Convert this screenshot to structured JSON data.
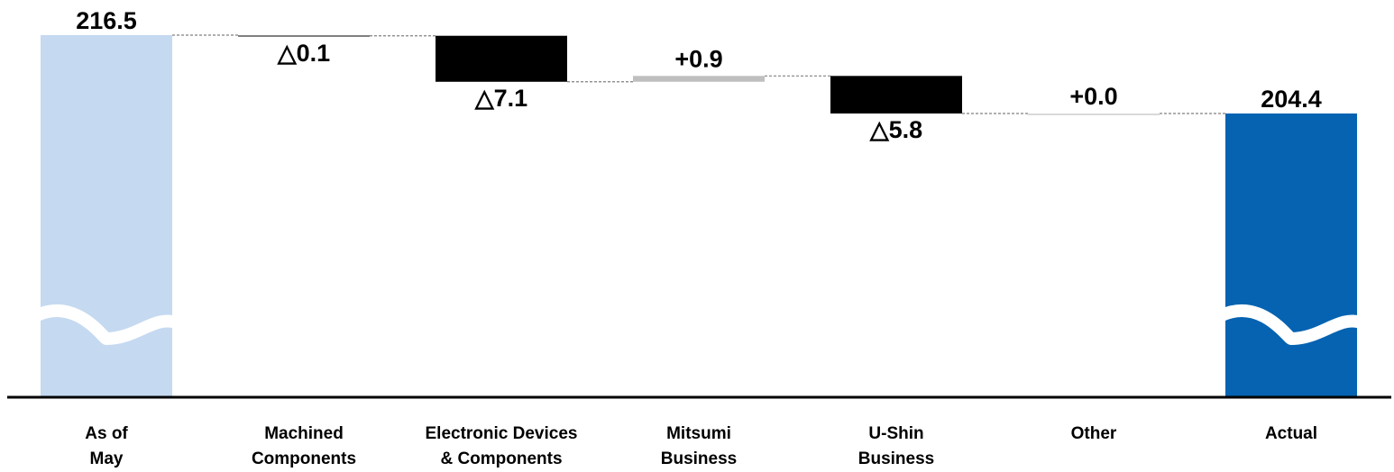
{
  "chart_data": {
    "type": "waterfall",
    "title": "",
    "xlabel": "",
    "ylabel": "",
    "axis_break": true,
    "grid": false,
    "ylim": [
      193.0,
      218.0
    ],
    "categories": [
      [
        "As of",
        "May"
      ],
      [
        "Machined",
        "Components"
      ],
      [
        "Electronic Devices",
        "& Components"
      ],
      [
        "Mitsumi",
        "Business"
      ],
      [
        "U-Shin",
        "Business"
      ],
      [
        "Other"
      ],
      [
        "Actual"
      ]
    ],
    "steps": [
      {
        "kind": "total",
        "value": 216.5,
        "label": "216.5",
        "color": "#c5d9f1"
      },
      {
        "kind": "delta",
        "value": -0.1,
        "label": "△0.1",
        "color": "#808080"
      },
      {
        "kind": "delta",
        "value": -7.1,
        "label": "△7.1",
        "color": "#000000"
      },
      {
        "kind": "delta",
        "value": 0.9,
        "label": "+0.9",
        "color": "#bfbfbf"
      },
      {
        "kind": "delta",
        "value": -5.8,
        "label": "△5.8",
        "color": "#000000"
      },
      {
        "kind": "delta",
        "value": 0.0,
        "label": "+0.0",
        "color": "#d9d9d9"
      },
      {
        "kind": "total",
        "value": 204.4,
        "label": "204.4",
        "color": "#0563b1"
      }
    ]
  }
}
